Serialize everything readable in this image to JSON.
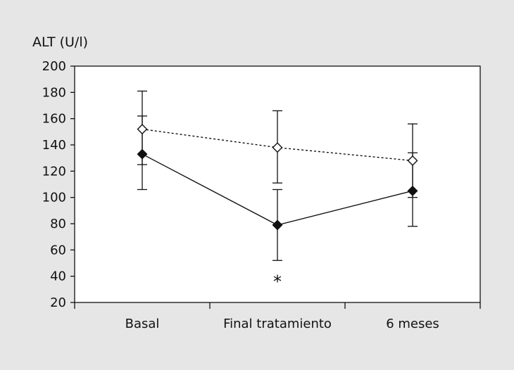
{
  "chart_data": {
    "type": "line",
    "ylabel": "ALT (U/l)",
    "categories": [
      "Basal",
      "Final tratamiento",
      "6 meses"
    ],
    "ylim": [
      20,
      200
    ],
    "yticks": [
      20,
      40,
      60,
      80,
      100,
      120,
      140,
      160,
      180,
      200
    ],
    "grid": false,
    "series": [
      {
        "style": "solid",
        "marker": "filled-diamond",
        "values": [
          133,
          79,
          105
        ],
        "error_upper": [
          162,
          106,
          134
        ],
        "error_lower": [
          106,
          52,
          78
        ]
      },
      {
        "style": "dashed",
        "marker": "open-diamond",
        "values": [
          152,
          138,
          128
        ],
        "error_upper": [
          181,
          166,
          156
        ],
        "error_lower": [
          125,
          111,
          100
        ]
      }
    ],
    "annotations": [
      {
        "text": "*",
        "category": "Final tratamiento",
        "y": 37
      }
    ]
  },
  "colors": {
    "background": "#e6e6e6",
    "plot_area": "#ffffff",
    "ink": "#111111"
  }
}
